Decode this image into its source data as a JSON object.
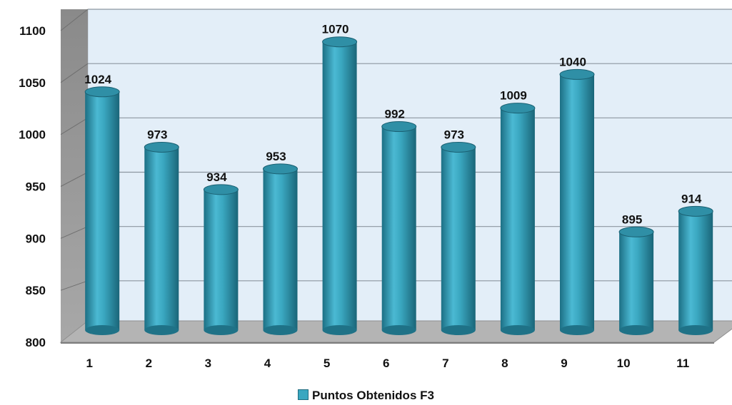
{
  "chart_data": {
    "type": "bar",
    "style": "3d-cylinder",
    "categories": [
      "1",
      "2",
      "3",
      "4",
      "5",
      "6",
      "7",
      "8",
      "9",
      "10",
      "11"
    ],
    "series": [
      {
        "name": "Puntos Obtenidos F3",
        "values": [
          1024,
          973,
          934,
          953,
          1070,
          992,
          973,
          1009,
          1040,
          895,
          914
        ]
      }
    ],
    "data_labels": [
      "1024",
      "973",
      "934",
      "953",
      "1070",
      "992",
      "973",
      "1009",
      "1040",
      "895",
      "914"
    ],
    "y_ticks": [
      "800",
      "850",
      "900",
      "950",
      "1000",
      "1050",
      "1100"
    ],
    "ylim": [
      800,
      1100
    ],
    "grid": true,
    "legend_position": "bottom",
    "colors": {
      "bar": "#3aa7c0",
      "wall": "#e3eef8",
      "floor": "#b4b4b4",
      "side_wall": "#9c9c9c"
    }
  }
}
